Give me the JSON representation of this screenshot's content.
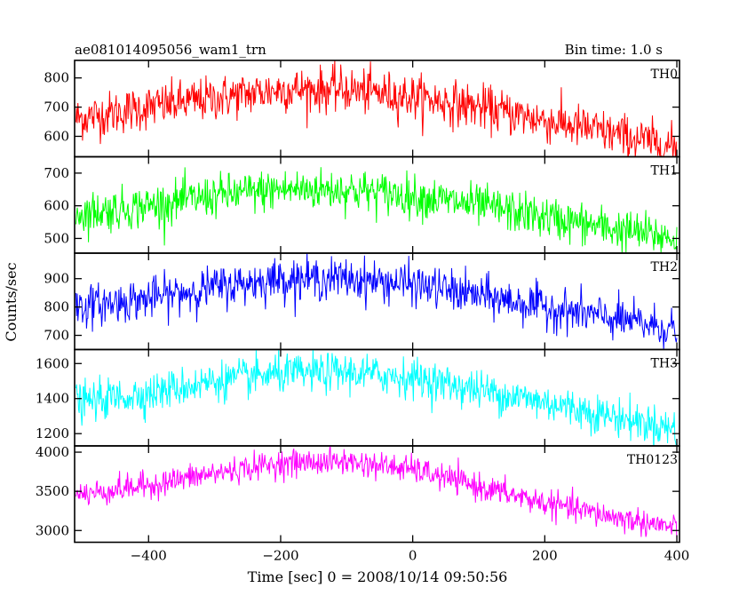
{
  "header": {
    "title": "ae081014095056_wam1_trn",
    "bin_time": "Bin time: 1.0 s"
  },
  "axes": {
    "xlabel": "Time [sec] 0 = 2008/10/14 09:50:56",
    "ylabel": "Counts/sec"
  },
  "chart_data": {
    "type": "line",
    "xlim": [
      -512,
      404
    ],
    "x_ticks": [
      -400,
      -200,
      0,
      200,
      400
    ],
    "bin_time_s": 1.0,
    "panels": [
      {
        "name": "TH0",
        "color": "#ff0000",
        "ylim": [
          530,
          860
        ],
        "y_ticks": [
          600,
          700,
          800
        ],
        "trend": [
          [
            -510,
            660
          ],
          [
            -400,
            700
          ],
          [
            -300,
            730
          ],
          [
            -200,
            760
          ],
          [
            -100,
            760
          ],
          [
            0,
            735
          ],
          [
            100,
            700
          ],
          [
            200,
            655
          ],
          [
            300,
            610
          ],
          [
            400,
            560
          ]
        ],
        "noise_sd": 38
      },
      {
        "name": "TH1",
        "color": "#00ff00",
        "ylim": [
          455,
          750
        ],
        "y_ticks": [
          500,
          600,
          700
        ],
        "trend": [
          [
            -510,
            575
          ],
          [
            -400,
            600
          ],
          [
            -300,
            630
          ],
          [
            -200,
            650
          ],
          [
            -100,
            650
          ],
          [
            0,
            630
          ],
          [
            100,
            600
          ],
          [
            200,
            565
          ],
          [
            300,
            530
          ],
          [
            400,
            500
          ]
        ],
        "noise_sd": 32
      },
      {
        "name": "TH2",
        "color": "#0000ff",
        "ylim": [
          650,
          990
        ],
        "y_ticks": [
          700,
          800,
          900
        ],
        "trend": [
          [
            -510,
            800
          ],
          [
            -400,
            830
          ],
          [
            -300,
            870
          ],
          [
            -200,
            900
          ],
          [
            -100,
            900
          ],
          [
            0,
            880
          ],
          [
            100,
            840
          ],
          [
            200,
            800
          ],
          [
            300,
            760
          ],
          [
            400,
            720
          ]
        ],
        "noise_sd": 36
      },
      {
        "name": "TH3",
        "color": "#00ffff",
        "ylim": [
          1130,
          1680
        ],
        "y_ticks": [
          1200,
          1400,
          1600
        ],
        "trend": [
          [
            -510,
            1375
          ],
          [
            -400,
            1430
          ],
          [
            -300,
            1500
          ],
          [
            -200,
            1540
          ],
          [
            -100,
            1550
          ],
          [
            0,
            1520
          ],
          [
            100,
            1450
          ],
          [
            200,
            1380
          ],
          [
            300,
            1300
          ],
          [
            400,
            1225
          ]
        ],
        "noise_sd": 55
      },
      {
        "name": "TH0123",
        "color": "#ff00ff",
        "ylim": [
          2850,
          4080
        ],
        "y_ticks": [
          3000,
          3500,
          4000
        ],
        "trend": [
          [
            -510,
            3450
          ],
          [
            -400,
            3580
          ],
          [
            -300,
            3730
          ],
          [
            -200,
            3860
          ],
          [
            -100,
            3880
          ],
          [
            0,
            3780
          ],
          [
            100,
            3560
          ],
          [
            200,
            3350
          ],
          [
            300,
            3180
          ],
          [
            400,
            3030
          ]
        ],
        "noise_sd": 85
      }
    ]
  }
}
